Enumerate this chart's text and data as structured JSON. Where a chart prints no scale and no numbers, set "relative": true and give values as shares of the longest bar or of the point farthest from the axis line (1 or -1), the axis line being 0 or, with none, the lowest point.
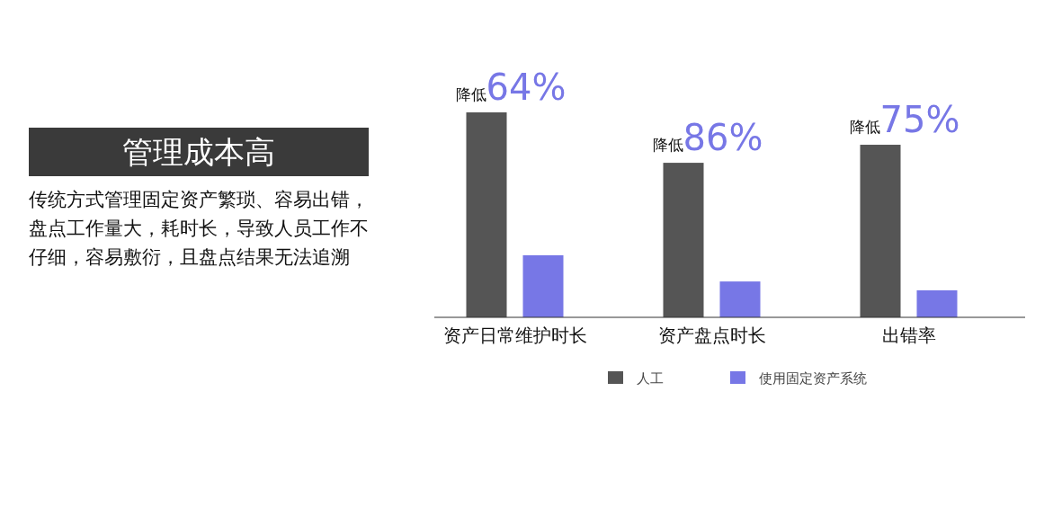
{
  "chart_data": [
    {
      "type": "other",
      "title": "管理成本高",
      "annotations": [
        "传统方式管理固定资产繁琐、容易出错，盘点工作量大，耗时长，导致人员工作不仔细，容易敷衍，且盘点结果无法追溯"
      ]
    },
    {
      "type": "bar",
      "relative": true,
      "categories": [
        "资产日常维护时长",
        "资产盘点时长",
        "出错率"
      ],
      "series": [
        {
          "name": "人工",
          "color": "#555555",
          "values": [
            1,
            0.754,
            0.842
          ]
        },
        {
          "name": "使用固定资产系统",
          "color": "#7777e6",
          "values": [
            0.303,
            0.175,
            0.132
          ]
        }
      ],
      "annotations": [
        "降低64%",
        "降低86%",
        "降低75%"
      ],
      "legend": "bottom"
    }
  ]
}
